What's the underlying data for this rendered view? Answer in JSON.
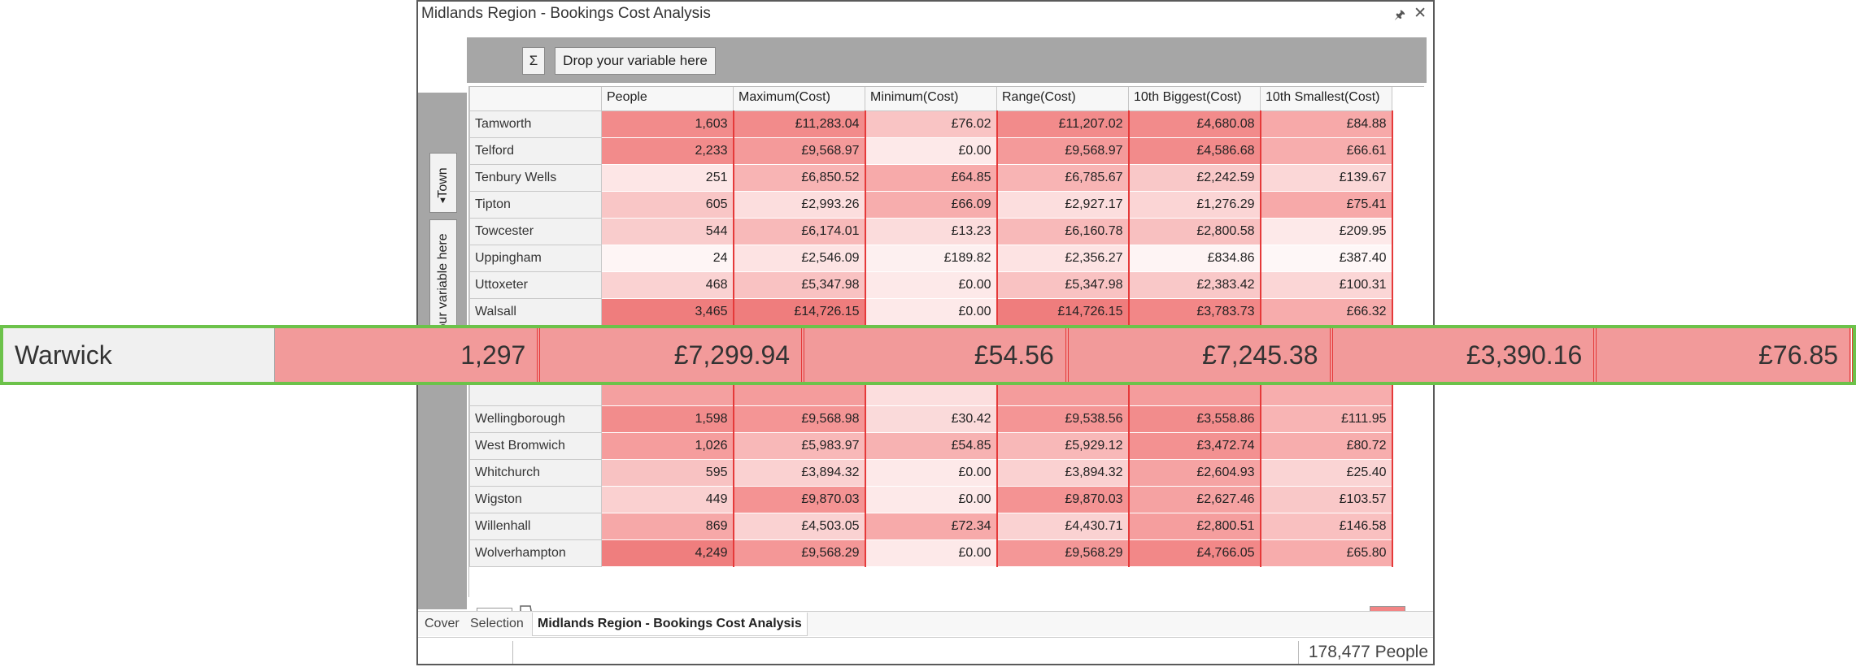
{
  "window": {
    "title": "Midlands Region - Bookings Cost Analysis"
  },
  "toolbar": {
    "sigma_label": "Σ",
    "drop_top_label": "Drop your variable here",
    "town_label": "Town",
    "drop_side_label": "Drop your variable here"
  },
  "table": {
    "columns": [
      "",
      "People",
      "Maximum(Cost)",
      "Minimum(Cost)",
      "Range(Cost)",
      "10th Biggest(Cost)",
      "10th Smallest(Cost)"
    ],
    "rows": [
      {
        "town": "Tamworth",
        "people": "1,603",
        "max": "£11,283.04",
        "min": "£76.02",
        "range": "£11,207.02",
        "big10": "£4,680.08",
        "small10": "£84.88"
      },
      {
        "town": "Telford",
        "people": "2,233",
        "max": "£9,568.97",
        "min": "£0.00",
        "range": "£9,568.97",
        "big10": "£4,586.68",
        "small10": "£66.61"
      },
      {
        "town": "Tenbury Wells",
        "people": "251",
        "max": "£6,850.52",
        "min": "£64.85",
        "range": "£6,785.67",
        "big10": "£2,242.59",
        "small10": "£139.67"
      },
      {
        "town": "Tipton",
        "people": "605",
        "max": "£2,993.26",
        "min": "£66.09",
        "range": "£2,927.17",
        "big10": "£1,276.29",
        "small10": "£75.41"
      },
      {
        "town": "Towcester",
        "people": "544",
        "max": "£6,174.01",
        "min": "£13.23",
        "range": "£6,160.78",
        "big10": "£2,800.58",
        "small10": "£209.95"
      },
      {
        "town": "Uppingham",
        "people": "24",
        "max": "£2,546.09",
        "min": "£189.82",
        "range": "£2,356.27",
        "big10": "£834.86",
        "small10": "£387.40"
      },
      {
        "town": "Uttoxeter",
        "people": "468",
        "max": "£5,347.98",
        "min": "£0.00",
        "range": "£5,347.98",
        "big10": "£2,383.42",
        "small10": "£100.31"
      },
      {
        "town": "Walsall",
        "people": "3,465",
        "max": "£14,726.15",
        "min": "£0.00",
        "range": "£14,726.15",
        "big10": "£3,783.73",
        "small10": "£66.32"
      },
      {
        "town": "",
        "people": "",
        "max": "",
        "min": "",
        "range": "",
        "big10": "",
        "small10": ""
      },
      {
        "town": "",
        "people": "",
        "max": "",
        "min": "",
        "range": "",
        "big10": "",
        "small10": ""
      },
      {
        "town": "",
        "people": "",
        "max": "",
        "min": "",
        "range": "",
        "big10": "",
        "small10": ""
      },
      {
        "town": "Wellingborough",
        "people": "1,598",
        "max": "£9,568.98",
        "min": "£30.42",
        "range": "£9,538.56",
        "big10": "£3,558.86",
        "small10": "£111.95"
      },
      {
        "town": "West Bromwich",
        "people": "1,026",
        "max": "£5,983.97",
        "min": "£54.85",
        "range": "£5,929.12",
        "big10": "£3,472.74",
        "small10": "£80.72"
      },
      {
        "town": "Whitchurch",
        "people": "595",
        "max": "£3,894.32",
        "min": "£0.00",
        "range": "£3,894.32",
        "big10": "£2,604.93",
        "small10": "£25.40"
      },
      {
        "town": "Wigston",
        "people": "449",
        "max": "£9,870.03",
        "min": "£0.00",
        "range": "£9,870.03",
        "big10": "£2,627.46",
        "small10": "£103.57"
      },
      {
        "town": "Willenhall",
        "people": "869",
        "max": "£4,503.05",
        "min": "£72.34",
        "range": "£4,430.71",
        "big10": "£2,800.51",
        "small10": "£146.58"
      },
      {
        "town": "Wolverhampton",
        "people": "4,249",
        "max": "£9,568.29",
        "min": "£0.00",
        "range": "£9,568.29",
        "big10": "£4,766.05",
        "small10": "£65.80"
      }
    ],
    "shades": [
      [
        "#f28b8b",
        "#f28b8b",
        "#f9c4c4",
        "#f28b8b",
        "#f28b8b",
        "#f7a9a9"
      ],
      [
        "#f28b8b",
        "#f49a9a",
        "#fde9e9",
        "#f49a9a",
        "#f28b8b",
        "#f7adad"
      ],
      [
        "#fde6e6",
        "#f8b4b4",
        "#f7aaaa",
        "#f8b4b4",
        "#f9c8c8",
        "#fbd7d7"
      ],
      [
        "#f9c6c6",
        "#fcdede",
        "#f7adad",
        "#fcdede",
        "#fbd5d5",
        "#f7a9a9"
      ],
      [
        "#f9cccc",
        "#f8b9b9",
        "#fbdcdc",
        "#f8b9b9",
        "#f8c0c0",
        "#fde9e9"
      ],
      [
        "#fef5f5",
        "#fde3e3",
        "#fdf0f0",
        "#fde3e3",
        "#fef4f4",
        "#fef7f7"
      ],
      [
        "#fad2d2",
        "#f9c2c2",
        "#fde9e9",
        "#f9c2c2",
        "#f9c8c8",
        "#fbd6d6"
      ],
      [
        "#ef7d7d",
        "#ef7d7d",
        "#fde9e9",
        "#ef7d7d",
        "#f28787",
        "#f7acac"
      ],
      [
        "#fbdada",
        "#f7b0b0",
        "#fbdada",
        "#f7b0b0",
        "#f8baba",
        "#fbdada"
      ],
      [
        "#f8c0c0",
        "#f8c0c0",
        "#fde9e9",
        "#f8c0c0",
        "#f8c0c0",
        "#f9c8c8"
      ],
      [
        "#f4a0a0",
        "#f49c9c",
        "#fcdede",
        "#f49c9c",
        "#f49c9c",
        "#f7adad"
      ],
      [
        "#f28c8c",
        "#f49595",
        "#fadada",
        "#f49595",
        "#f28c8c",
        "#f8b4b4"
      ],
      [
        "#f59d9d",
        "#f8b8b8",
        "#f7b2b2",
        "#f8b8b8",
        "#f39191",
        "#f7adad"
      ],
      [
        "#f8c2c2",
        "#fad1d1",
        "#fde9e9",
        "#fad1d1",
        "#f5a3a3",
        "#fad4d4"
      ],
      [
        "#fad0d0",
        "#f49393",
        "#fde9e9",
        "#f49393",
        "#f5a2a2",
        "#f9c8c8"
      ],
      [
        "#f6a8a8",
        "#fad2d2",
        "#f7aaaa",
        "#fad2d2",
        "#f59e9e",
        "#f9c0c0"
      ],
      [
        "#ef7e7e",
        "#f49797",
        "#fde9e9",
        "#f49797",
        "#f28888",
        "#f7acac"
      ]
    ]
  },
  "zoom_row": {
    "town": "Warwick",
    "people": "1,297",
    "max": "£7,299.94",
    "min": "£54.56",
    "range": "£7,245.38",
    "big10": "£3,390.16",
    "small10": "£76.85"
  },
  "tabs": {
    "cover": "Cover",
    "selection": "Selection",
    "active": "Midlands Region - Bookings Cost Analysis"
  },
  "status": {
    "count": "178,477 People"
  },
  "colors": {
    "accent_red": "#e53a3a",
    "highlight_green": "#6cc24a",
    "low": "#ffffff",
    "high": "#f28585"
  }
}
